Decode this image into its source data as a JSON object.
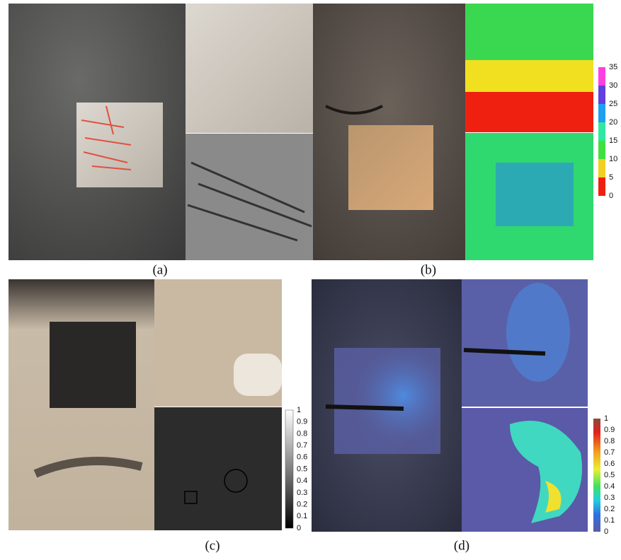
{
  "panels": [
    {
      "label": "(a)"
    },
    {
      "label": "(b)",
      "colorbar": {
        "ticks": [
          35,
          30,
          25,
          20,
          15,
          10,
          5,
          0
        ]
      }
    },
    {
      "label": "(c)",
      "colorbar": {
        "ticks": [
          1,
          0.9,
          0.8,
          0.7,
          0.6,
          0.5,
          0.4,
          0.3,
          0.2,
          0.1,
          0
        ]
      }
    },
    {
      "label": "(d)",
      "colorbar": {
        "ticks": [
          1,
          0.9,
          0.8,
          0.7,
          0.6,
          0.5,
          0.4,
          0.3,
          0.2,
          0.1,
          0
        ]
      }
    }
  ]
}
